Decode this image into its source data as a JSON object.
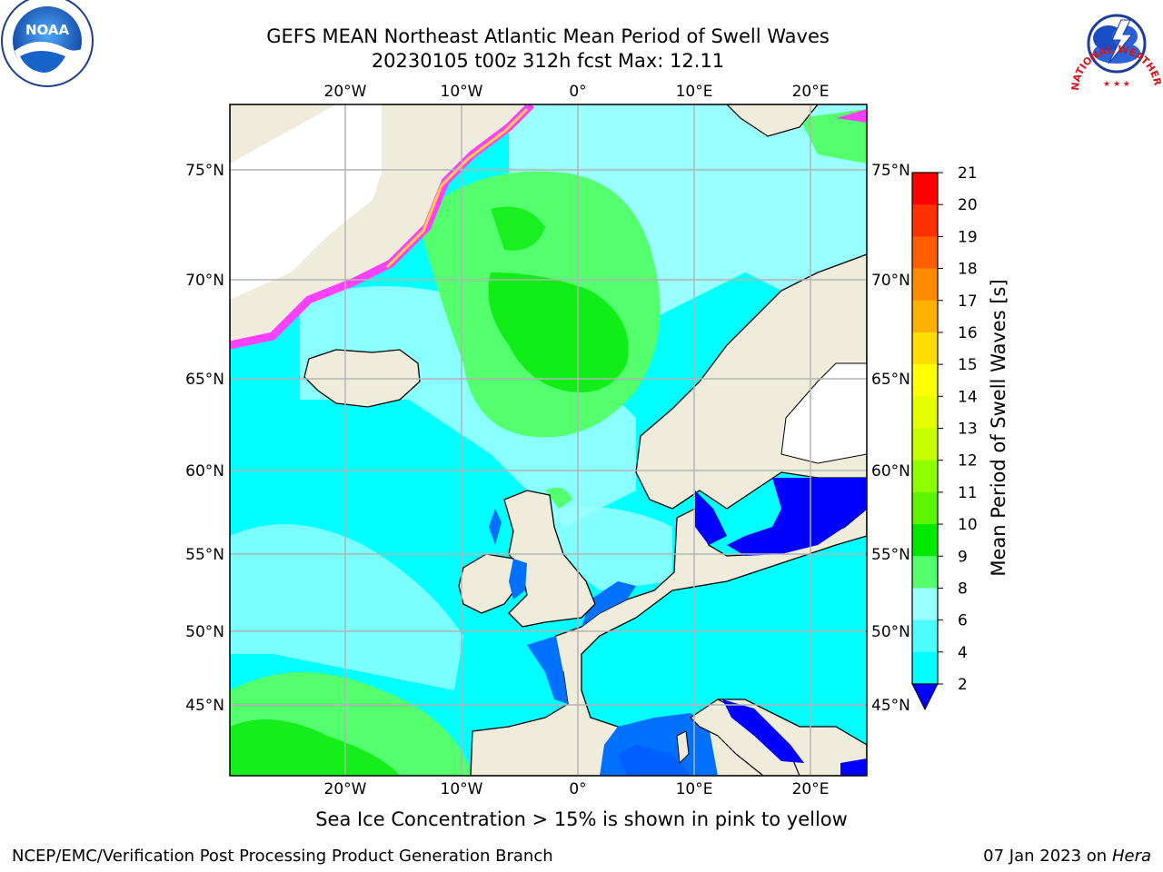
{
  "title_line1": "GEFS MEAN Northeast Atlantic Mean Period of Swell Waves",
  "title_line2": "20230105 t00z 312h fcst   Max: 12.11",
  "logos": {
    "left": "NOAA",
    "right_ring": "NATIONAL WEATHER SERVICE"
  },
  "map": {
    "lon_labels": [
      "20°W",
      "10°W",
      "0°",
      "10°E",
      "20°E"
    ],
    "lat_labels": [
      "75°N",
      "70°N",
      "65°N",
      "60°N",
      "55°N",
      "50°N",
      "45°N"
    ],
    "land_color": "#efecdc",
    "ocean_colors": {
      "cyan": "#00ffff",
      "light_cyan": "#99ffff",
      "green": "#54ff6e",
      "bright_green": "#00e800",
      "blue": "#0070ff",
      "deep_blue": "#0000ff",
      "ice_pink": "#ff40ff",
      "ice_yellow": "#ffd040"
    }
  },
  "colorbar": {
    "label": "Mean Period of Swell Waves [s]",
    "ticks": [
      "21",
      "20",
      "19",
      "18",
      "17",
      "16",
      "15",
      "14",
      "13",
      "12",
      "11",
      "10",
      "9",
      "8",
      "6",
      "4",
      "2"
    ],
    "colors": [
      "#ff0000",
      "#ff3000",
      "#ff5e00",
      "#ff8a00",
      "#ffb000",
      "#ffde00",
      "#ffff00",
      "#e6ff00",
      "#c8ff00",
      "#8eff00",
      "#5cf400",
      "#00e800",
      "#54ff6e",
      "#99ffff",
      "#4dfcff",
      "#00ffff",
      "#0070ff"
    ],
    "under_color": "#0000ff"
  },
  "note": "Sea Ice Concentration > 15% is shown in pink to yellow",
  "footer_left": "NCEP/EMC/Verification Post Processing Product Generation Branch",
  "footer_date": "07 Jan 2023 on ",
  "footer_machine": "Hera"
}
